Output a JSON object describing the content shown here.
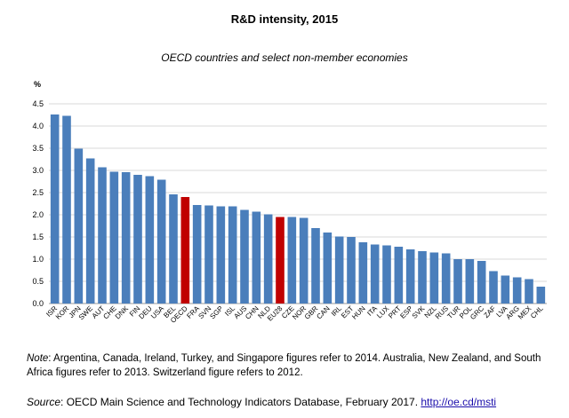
{
  "chart_data": {
    "type": "bar",
    "title": "R&D intensity, 2015",
    "subtitle": "OECD countries and select non-member economies",
    "ylabel": "%",
    "ylim": [
      0,
      4.5
    ],
    "yticks": [
      "0.0",
      "0.5",
      "1.0",
      "1.5",
      "2.0",
      "2.5",
      "3.0",
      "3.5",
      "4.0",
      "4.5"
    ],
    "grid": true,
    "categories": [
      "ISR",
      "KOR",
      "JPN",
      "SWE",
      "AUT",
      "CHE",
      "DNK",
      "FIN",
      "DEU",
      "USA",
      "BEL",
      "OECD",
      "FRA",
      "SVN",
      "SGP",
      "ISL",
      "AUS",
      "CHN",
      "NLD",
      "EU28",
      "CZE",
      "NOR",
      "GBR",
      "CAN",
      "IRL",
      "EST",
      "HUN",
      "ITA",
      "LUX",
      "PRT",
      "ESP",
      "SVK",
      "NZL",
      "RUS",
      "TUR",
      "POL",
      "GRC",
      "ZAF",
      "LVA",
      "ARG",
      "MEX",
      "CHL"
    ],
    "values": [
      4.26,
      4.23,
      3.49,
      3.27,
      3.07,
      2.97,
      2.96,
      2.9,
      2.87,
      2.79,
      2.46,
      2.4,
      2.22,
      2.21,
      2.19,
      2.19,
      2.11,
      2.07,
      2.01,
      1.95,
      1.95,
      1.93,
      1.7,
      1.6,
      1.51,
      1.5,
      1.38,
      1.33,
      1.31,
      1.28,
      1.22,
      1.18,
      1.15,
      1.13,
      1.0,
      1.0,
      0.96,
      0.73,
      0.63,
      0.59,
      0.55,
      0.38
    ],
    "highlight": [
      "OECD",
      "EU28"
    ],
    "colors": {
      "bar": "#4a7ebb",
      "highlight": "#c00000",
      "grid": "#d9d9d9"
    }
  },
  "note": {
    "label": "Note",
    "text": ": Argentina, Canada, Ireland, Turkey, and Singapore figures refer to 2014. Australia, New Zealand, and South Africa figures refer to 2013. Switzerland figure refers to 2012."
  },
  "source": {
    "label": "Source",
    "text": ": OECD Main Science and Technology Indicators Database, February 2017. ",
    "link": "http://oe.cd/msti"
  }
}
